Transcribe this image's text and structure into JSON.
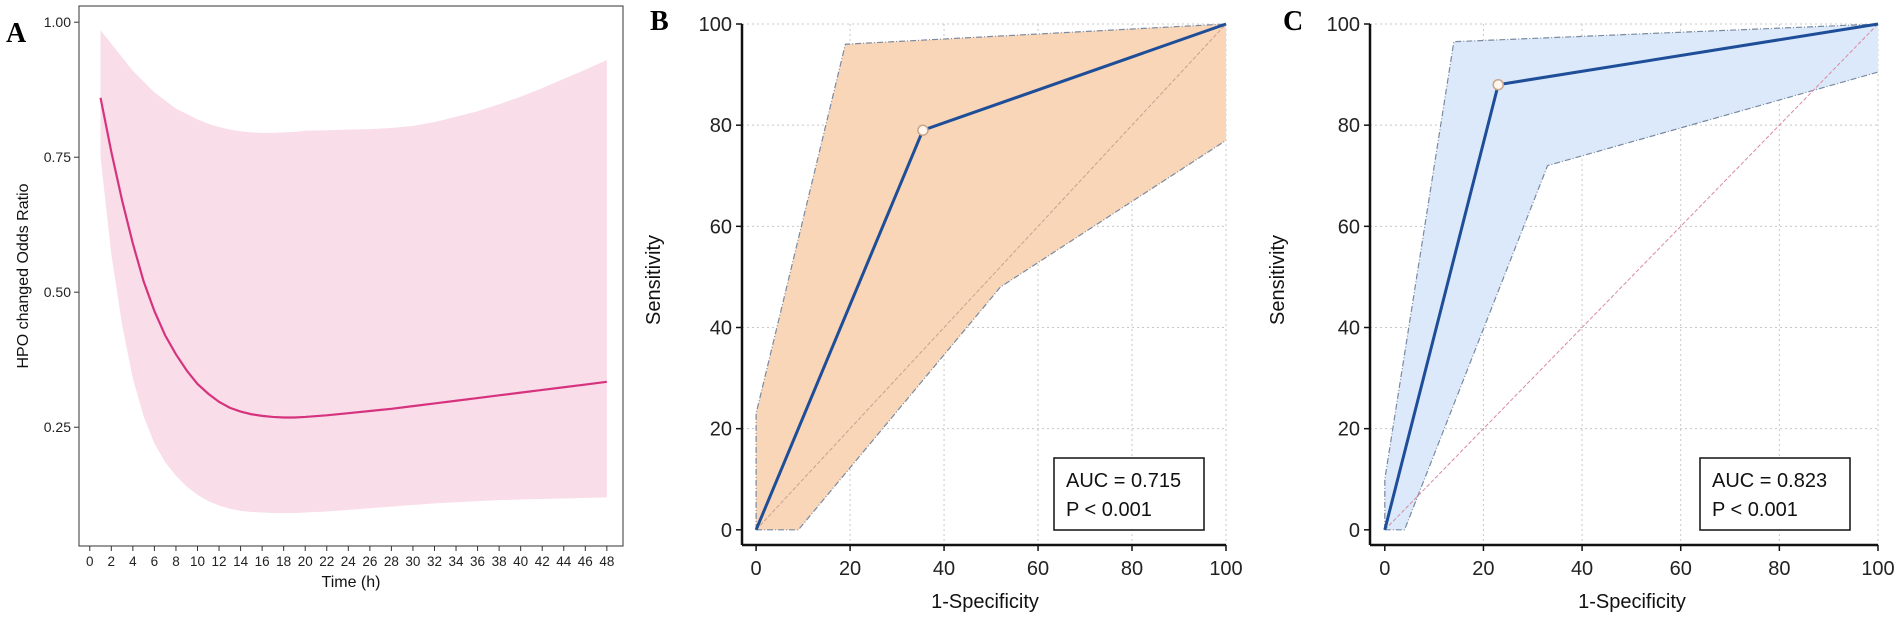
{
  "colors": {
    "a_line": "#d6337f",
    "a_band": "#f9dde9",
    "b_line": "#1f4e99",
    "b_band": "#f9d6b8",
    "b_band_edge": "#7a8aa0",
    "c_line": "#1f4e99",
    "c_band": "#dbe9fa",
    "c_band_edge": "#7a8aa0",
    "ref_b": "#c9a090",
    "ref_c": "#d98aa0",
    "grid": "#c8c8c8"
  },
  "chart_data": [
    {
      "id": "A",
      "panel_label": "A",
      "type": "line",
      "xlabel": "Time (h)",
      "ylabel": "HPO changed Odds Ratio",
      "xlim": [
        -1,
        49.5
      ],
      "ylim": [
        0.03,
        1.03
      ],
      "xticks": [
        0,
        2,
        4,
        6,
        8,
        10,
        12,
        14,
        16,
        18,
        20,
        22,
        24,
        26,
        28,
        30,
        32,
        34,
        36,
        38,
        40,
        42,
        44,
        46,
        48
      ],
      "yticks": [
        0.25,
        0.5,
        0.75,
        1.0
      ],
      "ytick_labels": [
        "0.25",
        "0.50",
        "0.75",
        "1.00"
      ],
      "x": [
        1,
        2,
        3,
        4,
        5,
        6,
        7,
        8,
        9,
        10,
        11,
        12,
        13,
        14,
        15,
        16,
        17,
        18,
        19,
        20,
        22,
        24,
        26,
        28,
        30,
        32,
        34,
        36,
        38,
        40,
        42,
        44,
        46,
        48
      ],
      "y": [
        0.86,
        0.76,
        0.67,
        0.59,
        0.52,
        0.465,
        0.42,
        0.385,
        0.355,
        0.33,
        0.312,
        0.297,
        0.286,
        0.279,
        0.274,
        0.271,
        0.269,
        0.268,
        0.268,
        0.269,
        0.272,
        0.276,
        0.28,
        0.284,
        0.289,
        0.294,
        0.299,
        0.304,
        0.309,
        0.314,
        0.319,
        0.324,
        0.329,
        0.334
      ],
      "upper": [
        0.985,
        0.96,
        0.935,
        0.91,
        0.89,
        0.87,
        0.855,
        0.84,
        0.83,
        0.82,
        0.812,
        0.806,
        0.801,
        0.798,
        0.796,
        0.795,
        0.795,
        0.796,
        0.797,
        0.799,
        0.8,
        0.801,
        0.802,
        0.804,
        0.808,
        0.815,
        0.825,
        0.835,
        0.848,
        0.862,
        0.878,
        0.895,
        0.912,
        0.93
      ],
      "lower": [
        0.75,
        0.57,
        0.44,
        0.34,
        0.27,
        0.22,
        0.185,
        0.16,
        0.14,
        0.125,
        0.113,
        0.105,
        0.099,
        0.095,
        0.093,
        0.092,
        0.091,
        0.091,
        0.091,
        0.092,
        0.094,
        0.097,
        0.1,
        0.103,
        0.106,
        0.109,
        0.111,
        0.113,
        0.115,
        0.116,
        0.117,
        0.118,
        0.119,
        0.12
      ]
    },
    {
      "id": "B",
      "panel_label": "B",
      "type": "line",
      "xlabel": "1-Specificity",
      "ylabel": "Sensitivity",
      "xlim": [
        -3,
        100
      ],
      "ylim": [
        -3,
        100
      ],
      "ticks": [
        0,
        20,
        40,
        60,
        80,
        100
      ],
      "roc": {
        "x": [
          0,
          35.5,
          100
        ],
        "y": [
          0,
          79,
          100
        ]
      },
      "cutoff_point": {
        "x": 35.5,
        "y": 79
      },
      "ci_upper": {
        "x": [
          0,
          0,
          19,
          100
        ],
        "y": [
          0,
          23,
          96,
          100
        ]
      },
      "ci_lower": {
        "x": [
          0,
          9,
          52,
          100
        ],
        "y": [
          0,
          0,
          48,
          77
        ]
      },
      "reference": {
        "x": [
          0,
          100
        ],
        "y": [
          0,
          100
        ]
      },
      "auc_text": "AUC = 0.715",
      "p_text": "P < 0.001"
    },
    {
      "id": "C",
      "panel_label": "C",
      "type": "line",
      "xlabel": "1-Specificity",
      "ylabel": "Sensitivity",
      "xlim": [
        -3,
        100
      ],
      "ylim": [
        -3,
        100
      ],
      "ticks": [
        0,
        20,
        40,
        60,
        80,
        100
      ],
      "roc": {
        "x": [
          0,
          23,
          100
        ],
        "y": [
          0,
          88,
          100
        ]
      },
      "cutoff_point": {
        "x": 23,
        "y": 88
      },
      "ci_upper": {
        "x": [
          0,
          0,
          14,
          100
        ],
        "y": [
          0,
          10,
          96.5,
          100
        ]
      },
      "ci_lower": {
        "x": [
          0,
          4,
          33,
          100
        ],
        "y": [
          0,
          0,
          72,
          90.5
        ]
      },
      "reference": {
        "x": [
          0,
          100
        ],
        "y": [
          0,
          100
        ]
      },
      "auc_text": "AUC = 0.823",
      "p_text": "P < 0.001"
    }
  ]
}
